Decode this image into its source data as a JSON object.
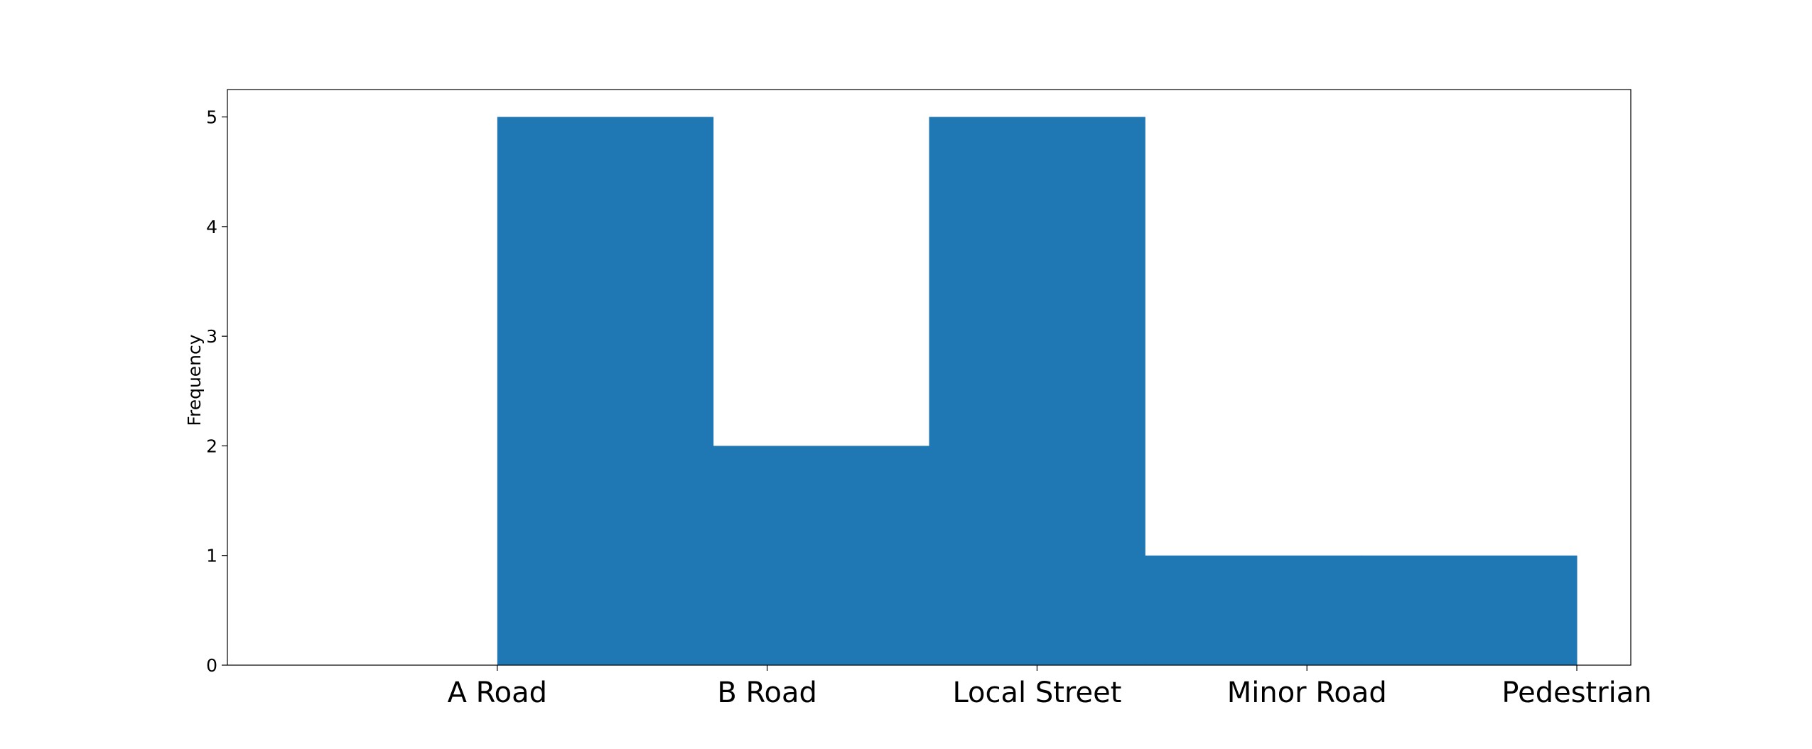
{
  "chart_data": {
    "type": "bar",
    "title": "",
    "xlabel": "",
    "ylabel": "Frequency",
    "x_tick_labels": [
      "A Road",
      "B Road",
      "Local Street",
      "Minor Road",
      "Pedestrian"
    ],
    "x_tick_positions": [
      0,
      1,
      2,
      3,
      4
    ],
    "xlim": [
      -1,
      4.2
    ],
    "ylim": [
      0,
      5.25
    ],
    "y_ticks": [
      0,
      1,
      2,
      3,
      4,
      5
    ],
    "bins": [
      {
        "start": 0.0,
        "end": 0.8,
        "value": 5
      },
      {
        "start": 0.8,
        "end": 1.6,
        "value": 2
      },
      {
        "start": 1.6,
        "end": 2.4,
        "value": 5
      },
      {
        "start": 2.4,
        "end": 3.2,
        "value": 1
      },
      {
        "start": 3.2,
        "end": 4.0,
        "value": 1
      }
    ],
    "bar_color": "#1f77b4",
    "grid": false,
    "legend": "none"
  }
}
